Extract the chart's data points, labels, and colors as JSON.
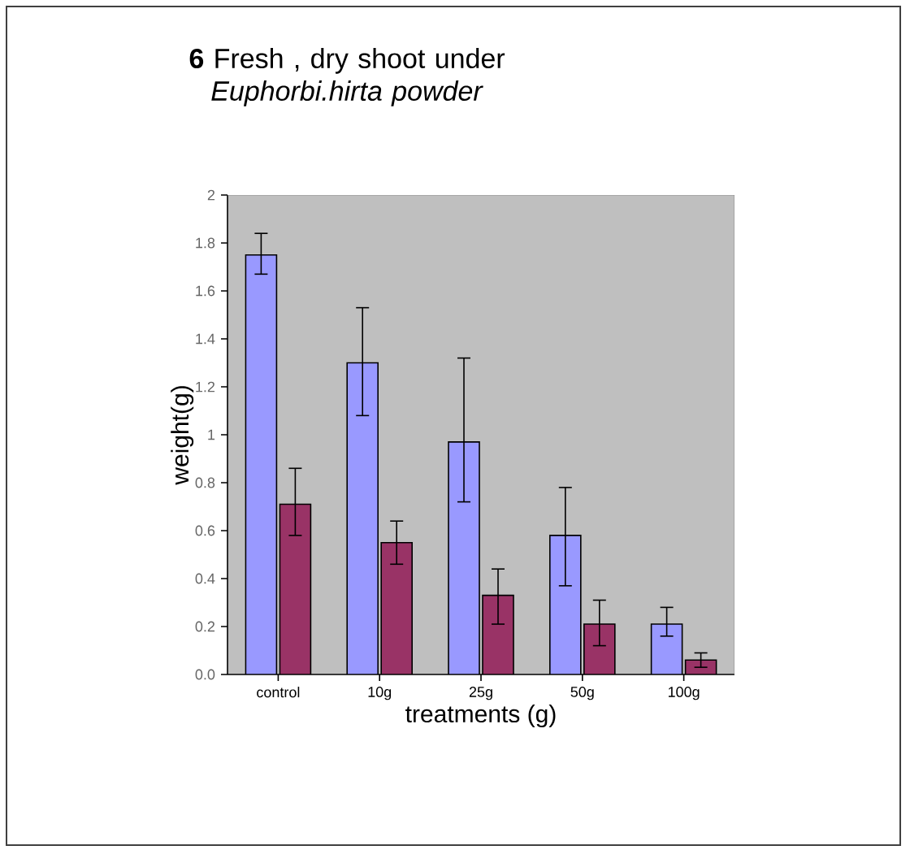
{
  "chart_data": {
    "type": "bar",
    "title": "**6** Fresh , dry shoot under *Euphorbi.hirta powder*",
    "xlabel": "treatments (g)",
    "ylabel": "weight(g)",
    "categories": [
      "control",
      "10g",
      "25g",
      "50g",
      "100g"
    ],
    "ylim": [
      0,
      2
    ],
    "yticks": [
      {
        "value": 0,
        "label": "0.0"
      },
      0.2,
      0.4,
      0.6,
      0.8,
      1,
      1.2,
      1.4,
      1.6,
      1.8,
      2
    ],
    "grid": false,
    "series": [
      {
        "color": "#9999ff",
        "values": [
          1.75,
          1.3,
          0.97,
          0.58,
          0.21
        ],
        "errors": [
          [
            1.67,
            1.84
          ],
          [
            1.08,
            1.53
          ],
          [
            0.72,
            1.32
          ],
          [
            0.37,
            0.78
          ],
          [
            0.16,
            0.28
          ]
        ]
      },
      {
        "color": "#993366",
        "values": [
          0.71,
          0.55,
          0.33,
          0.21,
          0.06
        ],
        "errors": [
          [
            0.58,
            0.86
          ],
          [
            0.46,
            0.64
          ],
          [
            0.21,
            0.44
          ],
          [
            0.12,
            0.31
          ],
          [
            0.03,
            0.09
          ]
        ]
      }
    ]
  }
}
